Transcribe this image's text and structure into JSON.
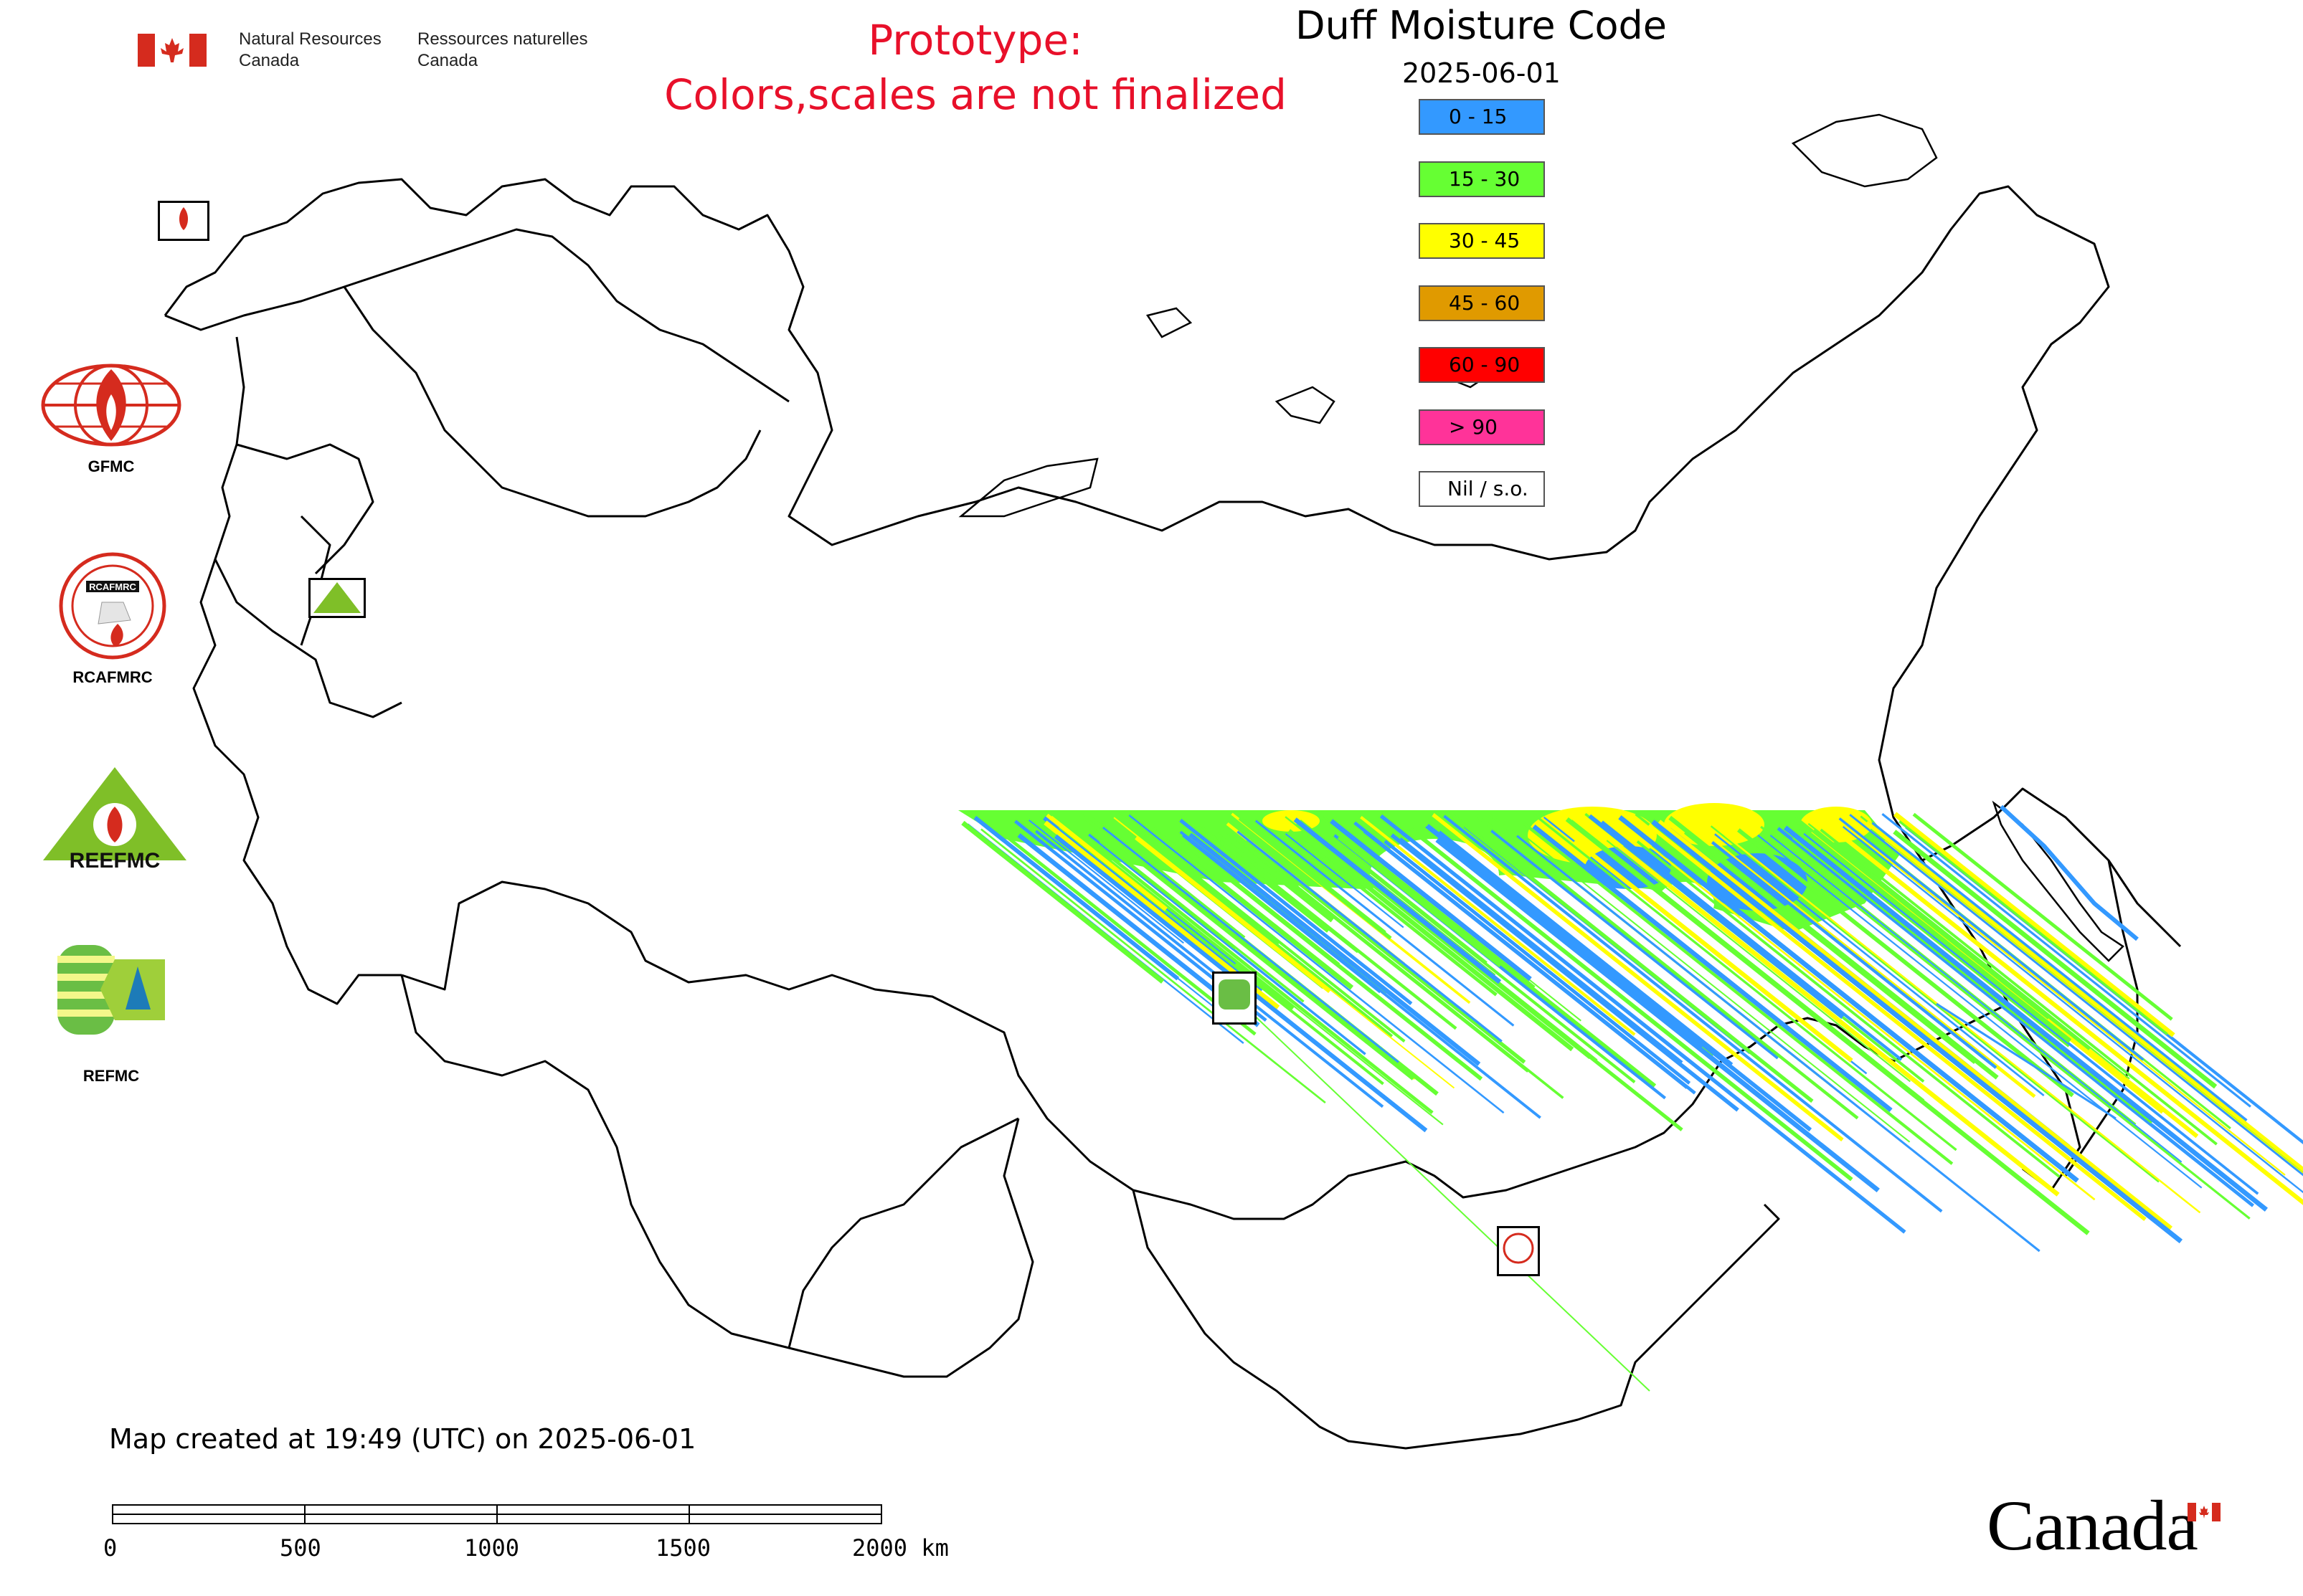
{
  "header": {
    "agency_en_line1": "Natural Resources",
    "agency_en_line2": "Canada",
    "agency_fr_line1": "Ressources naturelles",
    "agency_fr_line2": "Canada",
    "prototype_line1": "Prototype:",
    "prototype_line2": "Colors,scales are not finalized",
    "title": "Duff Moisture Code",
    "date": "2025-06-01"
  },
  "legend": [
    {
      "label": "0 - 15",
      "color": "#3399ff"
    },
    {
      "label": "15 - 30",
      "color": "#66ff33"
    },
    {
      "label": "30 - 45",
      "color": "#ffff00"
    },
    {
      "label": "45 - 60",
      "color": "#e09a00"
    },
    {
      "label": "60 - 90",
      "color": "#ff0000"
    },
    {
      "label": "> 90",
      "color": "#ff3399"
    },
    {
      "label": "Nil / s.o.",
      "color": "#ffffff"
    }
  ],
  "logos": [
    {
      "name": "GFMC",
      "icon": "gfmc-logo"
    },
    {
      "name": "RCAFMRC",
      "icon": "rcafmrc-logo"
    },
    {
      "name": "REEFMC",
      "icon": "reefmc-logo"
    },
    {
      "name": "REFMC",
      "icon": "refmc-logo"
    }
  ],
  "map_badges": [
    {
      "label": "GFMC"
    },
    {
      "label": "REEFMC"
    },
    {
      "label": "REFMC"
    },
    {
      "label": "RCAFMRC"
    }
  ],
  "footer": {
    "created": "Map created at 19:49 (UTC) on 2025-06-01",
    "scale_labels": [
      "0",
      "500",
      "1000",
      "1500",
      "2000 km"
    ],
    "wordmark": "Canada"
  },
  "colors": {
    "prototype_text": "#e8102a",
    "canada_flag_red": "#d52b1e",
    "coastline": "#000000"
  }
}
